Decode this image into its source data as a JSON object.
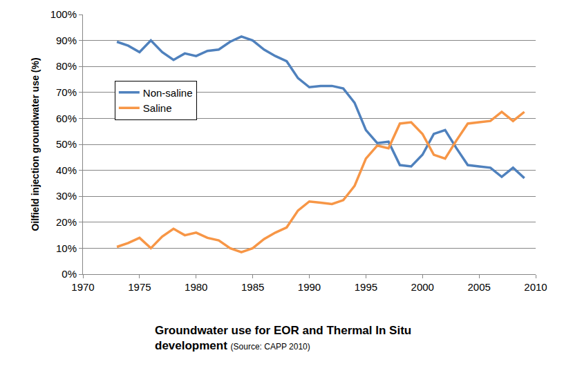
{
  "chart_data": {
    "type": "line",
    "title": "Groundwater use for EOR and Thermal In Situ development",
    "subtitle": "(Source: CAPP 2010)",
    "y_label": "Oilfield injection groundwater use (%)",
    "x": [
      1973,
      1974,
      1975,
      1976,
      1977,
      1978,
      1979,
      1980,
      1981,
      1982,
      1983,
      1984,
      1985,
      1986,
      1987,
      1988,
      1989,
      1990,
      1991,
      1992,
      1993,
      1994,
      1995,
      1996,
      1997,
      1998,
      1999,
      2000,
      2001,
      2002,
      2003,
      2004,
      2005,
      2006,
      2007,
      2008,
      2009
    ],
    "series": [
      {
        "name": "Non-saline",
        "color": "#4f81bd",
        "values": [
          89.5,
          88,
          85.5,
          90,
          85.5,
          82.5,
          85,
          84,
          86,
          86.5,
          89.5,
          91.5,
          90,
          86.5,
          84,
          82,
          75.5,
          72,
          72.5,
          72.5,
          71.5,
          66,
          55.5,
          50.5,
          51,
          42,
          41.5,
          46,
          54,
          55.5,
          48.5,
          42,
          41.5,
          41,
          37.5,
          41,
          37
        ]
      },
      {
        "name": "Saline",
        "color": "#f79646",
        "values": [
          10.5,
          12,
          14,
          10,
          14.5,
          17.5,
          15,
          16,
          14,
          13,
          10,
          8.5,
          10,
          13.5,
          16,
          18,
          24.5,
          28,
          27.5,
          27,
          28.5,
          34,
          44.5,
          49.5,
          48.5,
          58,
          58.5,
          54,
          46,
          44.5,
          51.5,
          58,
          58.5,
          59,
          62.5,
          59,
          62.5
        ]
      }
    ],
    "xlim": [
      1970,
      2010
    ],
    "xticks": [
      1970,
      1975,
      1980,
      1985,
      1990,
      1995,
      2000,
      2005,
      2010
    ],
    "ylim": [
      0,
      100
    ],
    "yticks": [
      {
        "value": 0,
        "label": "0%"
      },
      {
        "value": 10,
        "label": "10%"
      },
      {
        "value": 20,
        "label": "20%"
      },
      {
        "value": 30,
        "label": "30%"
      },
      {
        "value": 40,
        "label": "40%"
      },
      {
        "value": 50,
        "label": "50%"
      },
      {
        "value": 60,
        "label": "60%"
      },
      {
        "value": 70,
        "label": "70%"
      },
      {
        "value": 80,
        "label": "80%"
      },
      {
        "value": 90,
        "label": "90%"
      },
      {
        "value": 100,
        "label": "100%"
      }
    ],
    "grid": true,
    "legend": "left"
  }
}
